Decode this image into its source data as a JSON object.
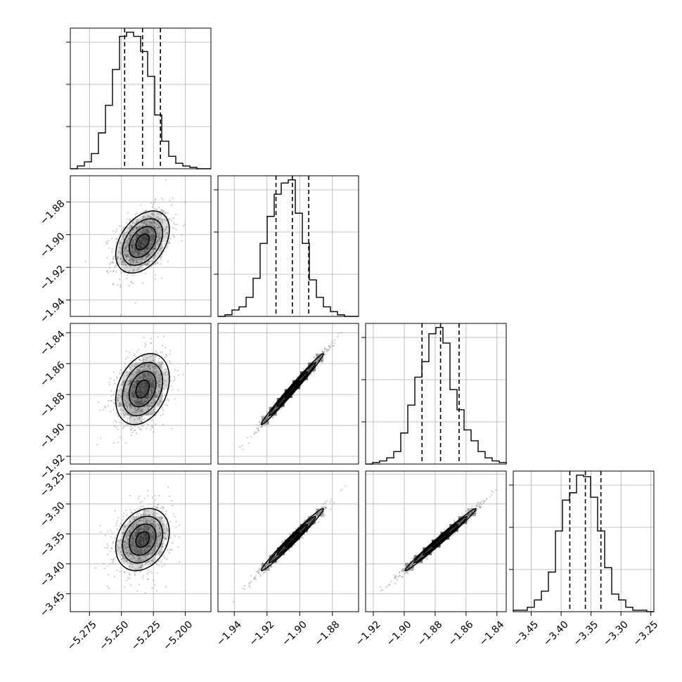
{
  "chart_data": {
    "type": "corner",
    "grid": true,
    "parameters": [
      {
        "range": [
          -5.29,
          -5.18
        ],
        "ticks": [
          "-5.275",
          "-5.250",
          "-5.225",
          "-5.200"
        ],
        "tick_values": [
          -5.275,
          -5.25,
          -5.225,
          -5.2
        ],
        "quantiles": [
          -5.2475,
          -5.2335,
          -5.2195
        ],
        "mean": -5.2335,
        "sd": 0.0105
      },
      {
        "range": [
          -1.95,
          -1.864
        ],
        "ticks": [
          "-1.94",
          "-1.92",
          "-1.90",
          "-1.88"
        ],
        "tick_values": [
          -1.94,
          -1.92,
          -1.9,
          -1.88
        ],
        "quantiles": [
          -1.9145,
          -1.9045,
          -1.8945
        ],
        "mean": -1.9045,
        "sd": 0.0095
      },
      {
        "range": [
          -1.925,
          -1.834
        ],
        "ticks": [
          "-1.92",
          "-1.90",
          "-1.88",
          "-1.86",
          "-1.84"
        ],
        "tick_values": [
          -1.92,
          -1.9,
          -1.88,
          -1.86,
          -1.84
        ],
        "quantiles": [
          -1.8885,
          -1.8765,
          -1.8645
        ],
        "mean": -1.8765,
        "sd": 0.0115
      },
      {
        "range": [
          -3.48,
          -3.245
        ],
        "ticks": [
          "-3.45",
          "-3.40",
          "-3.35",
          "-3.30",
          "-3.25"
        ],
        "tick_values": [
          -3.45,
          -3.4,
          -3.35,
          -3.3,
          -3.25
        ],
        "quantiles": [
          -3.3855,
          -3.3595,
          -3.3335
        ],
        "mean": -3.3595,
        "sd": 0.026
      }
    ],
    "histograms": [
      [
        0,
        2,
        5,
        11,
        26,
        46,
        72,
        96,
        99,
        96,
        85,
        67,
        39,
        20,
        9,
        4,
        2,
        1,
        0,
        0
      ],
      [
        0,
        1,
        4,
        6,
        12,
        24,
        46,
        63,
        77,
        84,
        86,
        65,
        46,
        23,
        12,
        6,
        3,
        1,
        0,
        0
      ],
      [
        0,
        1,
        2,
        4,
        8,
        20,
        38,
        56,
        66,
        84,
        88,
        78,
        48,
        35,
        22,
        15,
        8,
        4,
        2,
        1
      ],
      [
        1,
        1,
        3,
        8,
        14,
        27,
        55,
        76,
        81,
        93,
        92,
        78,
        55,
        30,
        12,
        8,
        3,
        1,
        1,
        0
      ]
    ],
    "correlations": {
      "1-0": 0.4,
      "2-0": 0.3,
      "3-0": 0.25,
      "2-1": 0.99,
      "3-1": 0.985,
      "3-2": 0.99
    },
    "scatter_color": "#8a8a8a",
    "density_color": "#000000"
  }
}
